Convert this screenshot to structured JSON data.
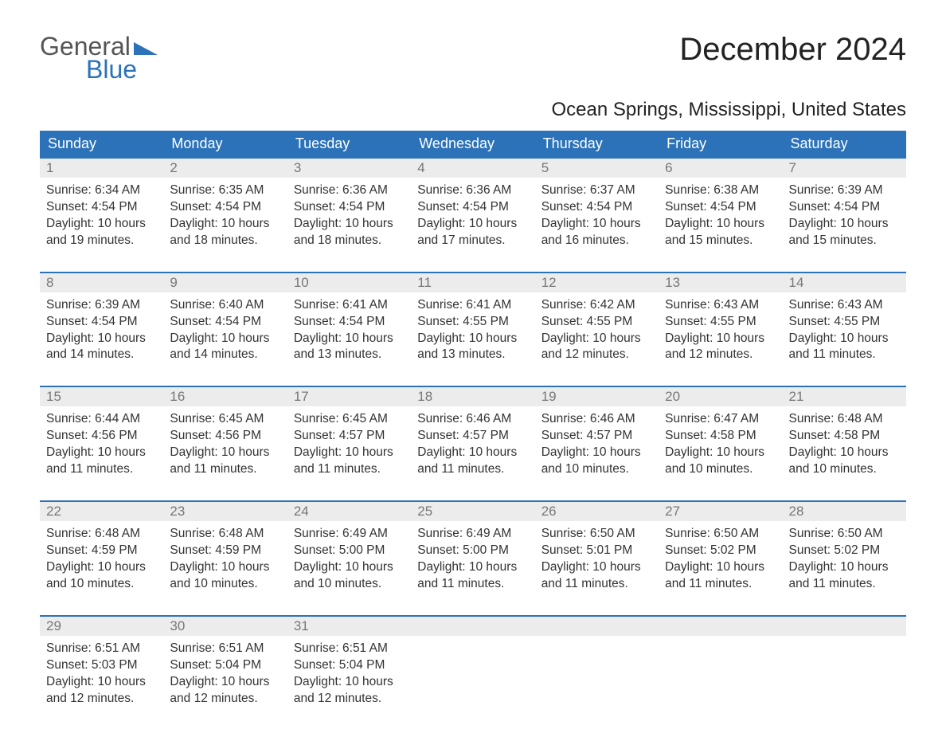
{
  "logo": {
    "text_general": "General",
    "text_blue": "Blue",
    "tri_color": "#2b72b8"
  },
  "title": "December 2024",
  "subtitle": "Ocean Springs, Mississippi, United States",
  "colors": {
    "header_bg": "#2b72b8",
    "header_text": "#ffffff",
    "daynum_bg": "#ececec",
    "daynum_text": "#777777",
    "row_border": "#2b72b8",
    "body_text": "#333333",
    "background": "#ffffff"
  },
  "day_headers": [
    "Sunday",
    "Monday",
    "Tuesday",
    "Wednesday",
    "Thursday",
    "Friday",
    "Saturday"
  ],
  "weeks": [
    {
      "nums": [
        "1",
        "2",
        "3",
        "4",
        "5",
        "6",
        "7"
      ],
      "cells": [
        {
          "sunrise": "6:34 AM",
          "sunset": "4:54 PM",
          "daylight": "10 hours and 19 minutes."
        },
        {
          "sunrise": "6:35 AM",
          "sunset": "4:54 PM",
          "daylight": "10 hours and 18 minutes."
        },
        {
          "sunrise": "6:36 AM",
          "sunset": "4:54 PM",
          "daylight": "10 hours and 18 minutes."
        },
        {
          "sunrise": "6:36 AM",
          "sunset": "4:54 PM",
          "daylight": "10 hours and 17 minutes."
        },
        {
          "sunrise": "6:37 AM",
          "sunset": "4:54 PM",
          "daylight": "10 hours and 16 minutes."
        },
        {
          "sunrise": "6:38 AM",
          "sunset": "4:54 PM",
          "daylight": "10 hours and 15 minutes."
        },
        {
          "sunrise": "6:39 AM",
          "sunset": "4:54 PM",
          "daylight": "10 hours and 15 minutes."
        }
      ]
    },
    {
      "nums": [
        "8",
        "9",
        "10",
        "11",
        "12",
        "13",
        "14"
      ],
      "cells": [
        {
          "sunrise": "6:39 AM",
          "sunset": "4:54 PM",
          "daylight": "10 hours and 14 minutes."
        },
        {
          "sunrise": "6:40 AM",
          "sunset": "4:54 PM",
          "daylight": "10 hours and 14 minutes."
        },
        {
          "sunrise": "6:41 AM",
          "sunset": "4:54 PM",
          "daylight": "10 hours and 13 minutes."
        },
        {
          "sunrise": "6:41 AM",
          "sunset": "4:55 PM",
          "daylight": "10 hours and 13 minutes."
        },
        {
          "sunrise": "6:42 AM",
          "sunset": "4:55 PM",
          "daylight": "10 hours and 12 minutes."
        },
        {
          "sunrise": "6:43 AM",
          "sunset": "4:55 PM",
          "daylight": "10 hours and 12 minutes."
        },
        {
          "sunrise": "6:43 AM",
          "sunset": "4:55 PM",
          "daylight": "10 hours and 11 minutes."
        }
      ]
    },
    {
      "nums": [
        "15",
        "16",
        "17",
        "18",
        "19",
        "20",
        "21"
      ],
      "cells": [
        {
          "sunrise": "6:44 AM",
          "sunset": "4:56 PM",
          "daylight": "10 hours and 11 minutes."
        },
        {
          "sunrise": "6:45 AM",
          "sunset": "4:56 PM",
          "daylight": "10 hours and 11 minutes."
        },
        {
          "sunrise": "6:45 AM",
          "sunset": "4:57 PM",
          "daylight": "10 hours and 11 minutes."
        },
        {
          "sunrise": "6:46 AM",
          "sunset": "4:57 PM",
          "daylight": "10 hours and 11 minutes."
        },
        {
          "sunrise": "6:46 AM",
          "sunset": "4:57 PM",
          "daylight": "10 hours and 10 minutes."
        },
        {
          "sunrise": "6:47 AM",
          "sunset": "4:58 PM",
          "daylight": "10 hours and 10 minutes."
        },
        {
          "sunrise": "6:48 AM",
          "sunset": "4:58 PM",
          "daylight": "10 hours and 10 minutes."
        }
      ]
    },
    {
      "nums": [
        "22",
        "23",
        "24",
        "25",
        "26",
        "27",
        "28"
      ],
      "cells": [
        {
          "sunrise": "6:48 AM",
          "sunset": "4:59 PM",
          "daylight": "10 hours and 10 minutes."
        },
        {
          "sunrise": "6:48 AM",
          "sunset": "4:59 PM",
          "daylight": "10 hours and 10 minutes."
        },
        {
          "sunrise": "6:49 AM",
          "sunset": "5:00 PM",
          "daylight": "10 hours and 10 minutes."
        },
        {
          "sunrise": "6:49 AM",
          "sunset": "5:00 PM",
          "daylight": "10 hours and 11 minutes."
        },
        {
          "sunrise": "6:50 AM",
          "sunset": "5:01 PM",
          "daylight": "10 hours and 11 minutes."
        },
        {
          "sunrise": "6:50 AM",
          "sunset": "5:02 PM",
          "daylight": "10 hours and 11 minutes."
        },
        {
          "sunrise": "6:50 AM",
          "sunset": "5:02 PM",
          "daylight": "10 hours and 11 minutes."
        }
      ]
    },
    {
      "nums": [
        "29",
        "30",
        "31",
        "",
        "",
        "",
        ""
      ],
      "cells": [
        {
          "sunrise": "6:51 AM",
          "sunset": "5:03 PM",
          "daylight": "10 hours and 12 minutes."
        },
        {
          "sunrise": "6:51 AM",
          "sunset": "5:04 PM",
          "daylight": "10 hours and 12 minutes."
        },
        {
          "sunrise": "6:51 AM",
          "sunset": "5:04 PM",
          "daylight": "10 hours and 12 minutes."
        },
        null,
        null,
        null,
        null
      ]
    }
  ],
  "labels": {
    "sunrise": "Sunrise: ",
    "sunset": "Sunset: ",
    "daylight": "Daylight: "
  }
}
